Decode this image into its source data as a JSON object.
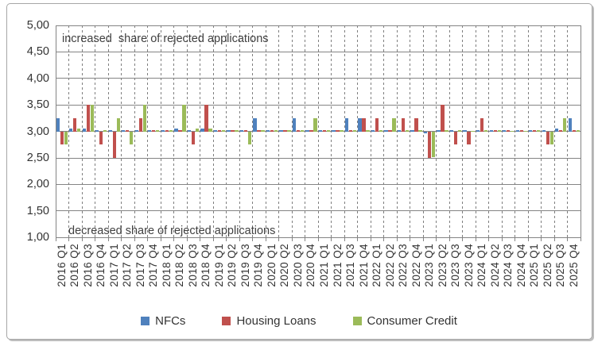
{
  "chart_data": {
    "type": "bar",
    "title": "",
    "xlabel": "",
    "ylabel": "",
    "baseline": 3.0,
    "ylim": [
      1.0,
      5.0
    ],
    "ytick_step": 0.5,
    "ytick_labels": [
      "5,00",
      "4,50",
      "4,00",
      "3,50",
      "3,00",
      "2,50",
      "2,00",
      "1,50",
      "1,00"
    ],
    "grid": {
      "horizontal": "solid",
      "vertical": "dashed"
    },
    "legend_position": "bottom",
    "categories": [
      "2016 Q1",
      "2016 Q2",
      "2016 Q3",
      "2016 Q4",
      "2017 Q1",
      "2017 Q2",
      "2017 Q3",
      "2017 Q4",
      "2018 Q1",
      "2018 Q2",
      "2018 Q3",
      "2018 Q4",
      "2019 Q1",
      "2019 Q2",
      "2019 Q3",
      "2019 Q4",
      "2020 Q1",
      "2020 Q2",
      "2020 Q3",
      "2020 Q4",
      "2021 Q1",
      "2021 Q2",
      "2021 Q3",
      "2021 Q4",
      "2022 Q1",
      "2022 Q2",
      "2022 Q3",
      "2022 Q4",
      "2023 Q1",
      "2023 Q2",
      "2023 Q3",
      "2023 Q4",
      "2024 Q1",
      "2024 Q2",
      "2024 Q3",
      "2024 Q4",
      "2025 Q1",
      "2025 Q2",
      "2025 Q3",
      "2025 Q4"
    ],
    "series": [
      {
        "name": "NFCs",
        "color": "#4F81BD",
        "values": [
          3.25,
          3.05,
          3.05,
          3.03,
          3.03,
          3.03,
          3.03,
          3.03,
          3.02,
          3.05,
          3.03,
          3.05,
          3.03,
          3.03,
          3.03,
          3.25,
          3.02,
          3.02,
          3.25,
          3.02,
          3.02,
          3.02,
          3.25,
          3.25,
          3.02,
          3.03,
          3.03,
          3.02,
          2.97,
          3.02,
          3.02,
          3.02,
          3.03,
          3.02,
          3.02,
          3.02,
          3.03,
          3.02,
          3.05,
          3.25
        ]
      },
      {
        "name": "Housing Loans",
        "color": "#C0504D",
        "values": [
          2.75,
          3.25,
          3.5,
          2.75,
          2.5,
          3.02,
          3.25,
          3.03,
          3.03,
          3.02,
          2.75,
          3.5,
          3.02,
          3.02,
          3.02,
          3.02,
          3.02,
          3.02,
          3.02,
          3.02,
          3.03,
          3.02,
          3.02,
          3.25,
          3.25,
          3.03,
          3.25,
          3.25,
          2.5,
          3.5,
          2.75,
          2.75,
          3.25,
          3.02,
          3.02,
          3.02,
          3.02,
          2.75,
          3.02,
          3.02
        ]
      },
      {
        "name": "Consumer Credit",
        "color": "#9BBB59",
        "values": [
          2.75,
          3.05,
          3.5,
          3.02,
          3.25,
          2.75,
          3.5,
          3.03,
          3.03,
          3.5,
          3.05,
          3.05,
          3.02,
          3.02,
          2.75,
          3.02,
          3.02,
          3.02,
          3.02,
          3.25,
          3.02,
          3.02,
          3.02,
          3.02,
          3.02,
          3.25,
          3.02,
          3.02,
          2.52,
          3.02,
          3.03,
          3.01,
          3.03,
          3.02,
          3.01,
          3.01,
          3.02,
          2.75,
          3.25,
          3.02
        ]
      }
    ],
    "annotations": {
      "top": "increased  share of rejected applications",
      "bottom": "decreased share of rejected applications"
    }
  }
}
